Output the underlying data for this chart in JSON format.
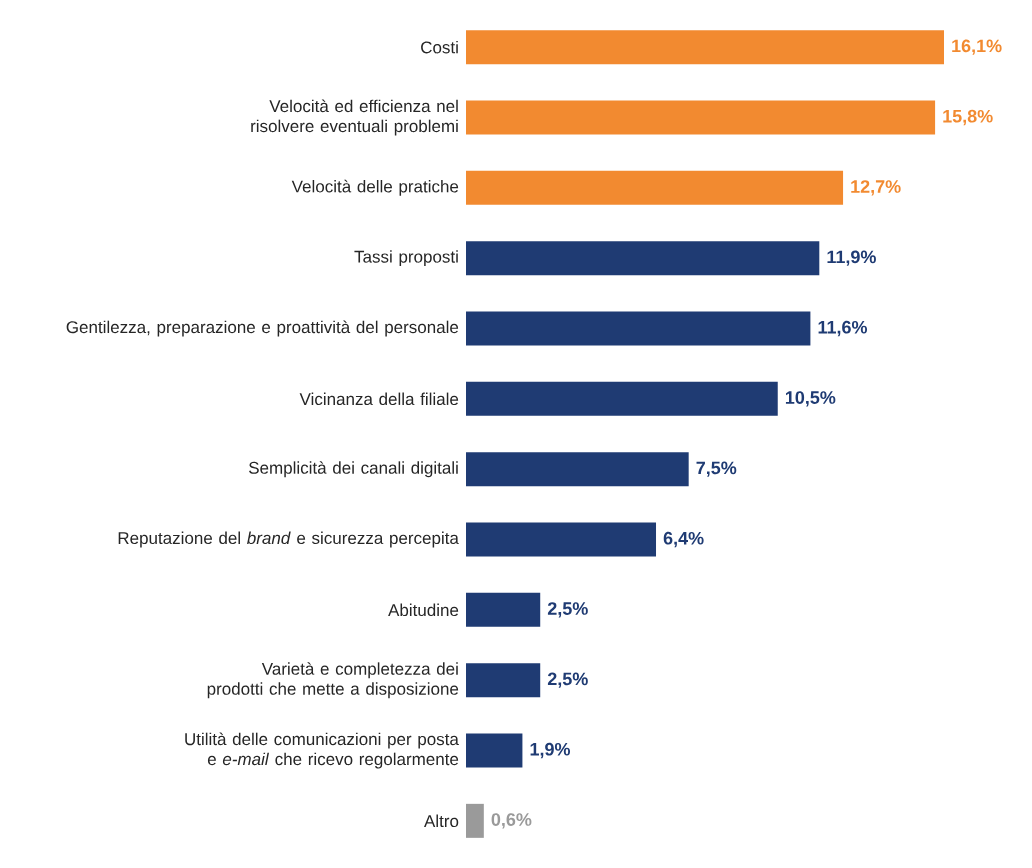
{
  "chart_data": {
    "type": "bar",
    "orientation": "horizontal",
    "categories": [
      "Costi",
      "Velocità ed efficienza nel risolvere eventuali problemi",
      "Velocità delle pratiche",
      "Tassi proposti",
      "Gentilezza, preparazione e proattività del personale",
      "Vicinanza della filiale",
      "Semplicità dei canali digitali",
      "Reputazione del *brand* e sicurezza percepita",
      "Abitudine",
      "Varietà e completezza dei prodotti che mette a disposizione",
      "Utilità delle comunicazioni per posta e *e-mail* che ricevo regolarmente",
      "Altro"
    ],
    "values": [
      16.1,
      15.8,
      12.7,
      11.9,
      11.6,
      10.5,
      7.5,
      6.4,
      2.5,
      2.5,
      1.9,
      0.6
    ],
    "value_labels": [
      "16,1%",
      "15,8%",
      "12,7%",
      "11,9%",
      "11,6%",
      "10,5%",
      "7,5%",
      "6,4%",
      "2,5%",
      "2,5%",
      "1,9%",
      "0,6%"
    ],
    "colors": [
      "#f28a30",
      "#f28a30",
      "#f28a30",
      "#1f3b73",
      "#1f3b73",
      "#1f3b73",
      "#1f3b73",
      "#1f3b73",
      "#1f3b73",
      "#1f3b73",
      "#1f3b73",
      "#9a9a9a"
    ]
  }
}
